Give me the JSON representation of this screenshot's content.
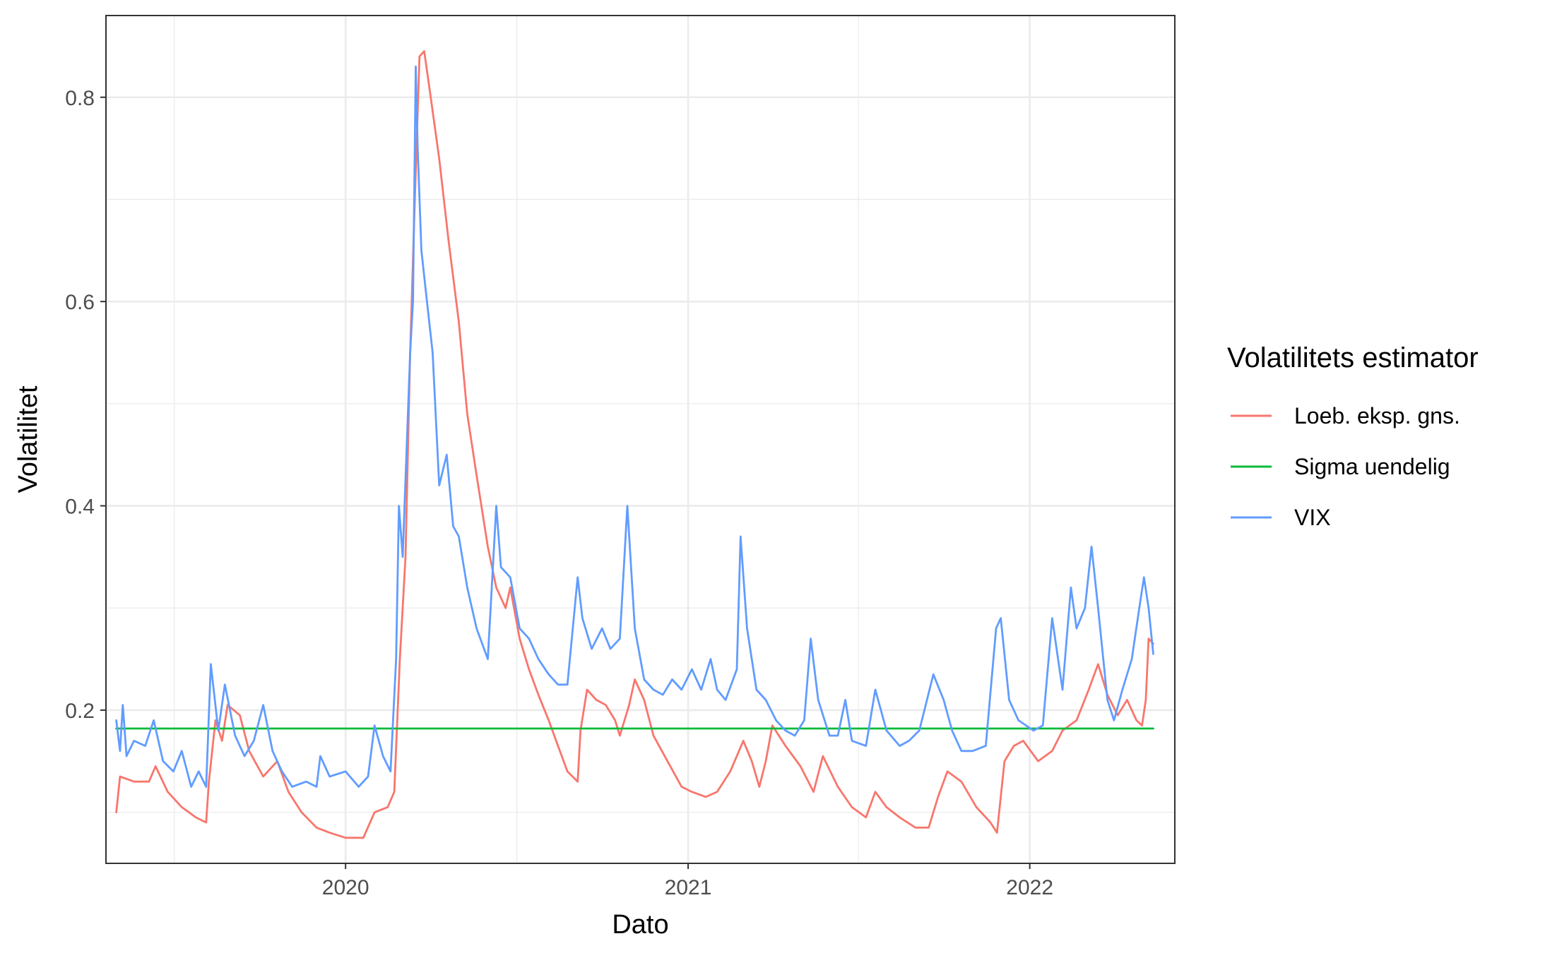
{
  "chart_data": {
    "type": "line",
    "xlabel": "Dato",
    "ylabel": "Volatilitet",
    "legend_title": "Volatilitets estimator",
    "legend_position": "right",
    "grid": true,
    "xlim": [
      "2019-04-20",
      "2022-06-05"
    ],
    "ylim": [
      0.05,
      0.88
    ],
    "x_ticks": [
      "2020",
      "2021",
      "2022"
    ],
    "y_ticks": [
      "0.2",
      "0.4",
      "0.6",
      "0.8"
    ],
    "series": [
      {
        "name": "Loeb. eksp. gns.",
        "color": "#F8766D",
        "points": [
          [
            "2019-05-01",
            0.1
          ],
          [
            "2019-05-05",
            0.135
          ],
          [
            "2019-05-20",
            0.13
          ],
          [
            "2019-06-05",
            0.13
          ],
          [
            "2019-06-12",
            0.145
          ],
          [
            "2019-06-25",
            0.12
          ],
          [
            "2019-07-10",
            0.105
          ],
          [
            "2019-07-25",
            0.095
          ],
          [
            "2019-08-05",
            0.09
          ],
          [
            "2019-08-08",
            0.13
          ],
          [
            "2019-08-15",
            0.19
          ],
          [
            "2019-08-22",
            0.17
          ],
          [
            "2019-08-28",
            0.205
          ],
          [
            "2019-09-10",
            0.195
          ],
          [
            "2019-09-20",
            0.16
          ],
          [
            "2019-10-05",
            0.135
          ],
          [
            "2019-10-20",
            0.15
          ],
          [
            "2019-11-01",
            0.12
          ],
          [
            "2019-11-15",
            0.1
          ],
          [
            "2019-12-01",
            0.085
          ],
          [
            "2019-12-15",
            0.08
          ],
          [
            "2020-01-01",
            0.075
          ],
          [
            "2020-01-20",
            0.075
          ],
          [
            "2020-02-01",
            0.1
          ],
          [
            "2020-02-15",
            0.105
          ],
          [
            "2020-02-22",
            0.12
          ],
          [
            "2020-02-28",
            0.25
          ],
          [
            "2020-03-05",
            0.35
          ],
          [
            "2020-03-10",
            0.55
          ],
          [
            "2020-03-15",
            0.7
          ],
          [
            "2020-03-20",
            0.84
          ],
          [
            "2020-03-25",
            0.845
          ],
          [
            "2020-04-01",
            0.8
          ],
          [
            "2020-04-10",
            0.74
          ],
          [
            "2020-04-20",
            0.66
          ],
          [
            "2020-05-01",
            0.58
          ],
          [
            "2020-05-10",
            0.49
          ],
          [
            "2020-05-20",
            0.43
          ],
          [
            "2020-06-01",
            0.36
          ],
          [
            "2020-06-10",
            0.32
          ],
          [
            "2020-06-20",
            0.3
          ],
          [
            "2020-06-25",
            0.32
          ],
          [
            "2020-07-05",
            0.27
          ],
          [
            "2020-07-15",
            0.24
          ],
          [
            "2020-07-25",
            0.215
          ],
          [
            "2020-08-05",
            0.19
          ],
          [
            "2020-08-15",
            0.165
          ],
          [
            "2020-08-25",
            0.14
          ],
          [
            "2020-09-05",
            0.13
          ],
          [
            "2020-09-08",
            0.18
          ],
          [
            "2020-09-15",
            0.22
          ],
          [
            "2020-09-25",
            0.21
          ],
          [
            "2020-10-05",
            0.205
          ],
          [
            "2020-10-15",
            0.19
          ],
          [
            "2020-10-20",
            0.175
          ],
          [
            "2020-10-30",
            0.205
          ],
          [
            "2020-11-05",
            0.23
          ],
          [
            "2020-11-15",
            0.21
          ],
          [
            "2020-11-25",
            0.175
          ],
          [
            "2020-12-10",
            0.15
          ],
          [
            "2020-12-25",
            0.125
          ],
          [
            "2021-01-05",
            0.12
          ],
          [
            "2021-01-20",
            0.115
          ],
          [
            "2021-02-01",
            0.12
          ],
          [
            "2021-02-15",
            0.14
          ],
          [
            "2021-03-01",
            0.17
          ],
          [
            "2021-03-10",
            0.15
          ],
          [
            "2021-03-18",
            0.125
          ],
          [
            "2021-03-25",
            0.15
          ],
          [
            "2021-04-01",
            0.185
          ],
          [
            "2021-04-15",
            0.165
          ],
          [
            "2021-05-01",
            0.145
          ],
          [
            "2021-05-15",
            0.12
          ],
          [
            "2021-05-25",
            0.155
          ],
          [
            "2021-06-10",
            0.125
          ],
          [
            "2021-06-25",
            0.105
          ],
          [
            "2021-07-10",
            0.095
          ],
          [
            "2021-07-20",
            0.12
          ],
          [
            "2021-08-01",
            0.105
          ],
          [
            "2021-08-15",
            0.095
          ],
          [
            "2021-09-01",
            0.085
          ],
          [
            "2021-09-15",
            0.085
          ],
          [
            "2021-09-25",
            0.115
          ],
          [
            "2021-10-05",
            0.14
          ],
          [
            "2021-10-20",
            0.13
          ],
          [
            "2021-11-05",
            0.105
          ],
          [
            "2021-11-20",
            0.09
          ],
          [
            "2021-11-27",
            0.08
          ],
          [
            "2021-12-05",
            0.15
          ],
          [
            "2021-12-15",
            0.165
          ],
          [
            "2021-12-25",
            0.17
          ],
          [
            "2022-01-10",
            0.15
          ],
          [
            "2022-01-25",
            0.16
          ],
          [
            "2022-02-05",
            0.18
          ],
          [
            "2022-02-20",
            0.19
          ],
          [
            "2022-03-05",
            0.22
          ],
          [
            "2022-03-15",
            0.245
          ],
          [
            "2022-03-25",
            0.215
          ],
          [
            "2022-04-05",
            0.195
          ],
          [
            "2022-04-15",
            0.21
          ],
          [
            "2022-04-25",
            0.19
          ],
          [
            "2022-05-01",
            0.185
          ],
          [
            "2022-05-05",
            0.21
          ],
          [
            "2022-05-08",
            0.27
          ],
          [
            "2022-05-13",
            0.265
          ]
        ]
      },
      {
        "name": "Sigma uendelig",
        "color": "#00BA38",
        "points": [
          [
            "2019-05-01",
            0.182
          ],
          [
            "2022-05-13",
            0.182
          ]
        ]
      },
      {
        "name": "VIX",
        "color": "#619CFF",
        "points": [
          [
            "2019-05-01",
            0.19
          ],
          [
            "2019-05-05",
            0.16
          ],
          [
            "2019-05-08",
            0.205
          ],
          [
            "2019-05-12",
            0.155
          ],
          [
            "2019-05-20",
            0.17
          ],
          [
            "2019-06-01",
            0.165
          ],
          [
            "2019-06-10",
            0.19
          ],
          [
            "2019-06-20",
            0.15
          ],
          [
            "2019-07-01",
            0.14
          ],
          [
            "2019-07-10",
            0.16
          ],
          [
            "2019-07-20",
            0.125
          ],
          [
            "2019-07-28",
            0.14
          ],
          [
            "2019-08-05",
            0.125
          ],
          [
            "2019-08-10",
            0.245
          ],
          [
            "2019-08-18",
            0.18
          ],
          [
            "2019-08-25",
            0.225
          ],
          [
            "2019-09-05",
            0.175
          ],
          [
            "2019-09-15",
            0.155
          ],
          [
            "2019-09-25",
            0.17
          ],
          [
            "2019-10-05",
            0.205
          ],
          [
            "2019-10-15",
            0.16
          ],
          [
            "2019-10-25",
            0.14
          ],
          [
            "2019-11-05",
            0.125
          ],
          [
            "2019-11-20",
            0.13
          ],
          [
            "2019-12-01",
            0.125
          ],
          [
            "2019-12-05",
            0.155
          ],
          [
            "2019-12-15",
            0.135
          ],
          [
            "2020-01-01",
            0.14
          ],
          [
            "2020-01-15",
            0.125
          ],
          [
            "2020-01-25",
            0.135
          ],
          [
            "2020-02-01",
            0.185
          ],
          [
            "2020-02-10",
            0.155
          ],
          [
            "2020-02-18",
            0.14
          ],
          [
            "2020-02-24",
            0.25
          ],
          [
            "2020-02-27",
            0.4
          ],
          [
            "2020-03-02",
            0.35
          ],
          [
            "2020-03-06",
            0.45
          ],
          [
            "2020-03-10",
            0.55
          ],
          [
            "2020-03-13",
            0.6
          ],
          [
            "2020-03-16",
            0.83
          ],
          [
            "2020-03-18",
            0.75
          ],
          [
            "2020-03-22",
            0.65
          ],
          [
            "2020-03-28",
            0.6
          ],
          [
            "2020-04-03",
            0.55
          ],
          [
            "2020-04-10",
            0.42
          ],
          [
            "2020-04-18",
            0.45
          ],
          [
            "2020-04-25",
            0.38
          ],
          [
            "2020-05-01",
            0.37
          ],
          [
            "2020-05-10",
            0.32
          ],
          [
            "2020-05-20",
            0.28
          ],
          [
            "2020-06-01",
            0.25
          ],
          [
            "2020-06-10",
            0.4
          ],
          [
            "2020-06-15",
            0.34
          ],
          [
            "2020-06-25",
            0.33
          ],
          [
            "2020-07-05",
            0.28
          ],
          [
            "2020-07-15",
            0.27
          ],
          [
            "2020-07-25",
            0.25
          ],
          [
            "2020-08-05",
            0.235
          ],
          [
            "2020-08-15",
            0.225
          ],
          [
            "2020-08-25",
            0.225
          ],
          [
            "2020-09-05",
            0.33
          ],
          [
            "2020-09-10",
            0.29
          ],
          [
            "2020-09-20",
            0.26
          ],
          [
            "2020-10-01",
            0.28
          ],
          [
            "2020-10-10",
            0.26
          ],
          [
            "2020-10-20",
            0.27
          ],
          [
            "2020-10-28",
            0.4
          ],
          [
            "2020-11-05",
            0.28
          ],
          [
            "2020-11-15",
            0.23
          ],
          [
            "2020-11-25",
            0.22
          ],
          [
            "2020-12-05",
            0.215
          ],
          [
            "2020-12-15",
            0.23
          ],
          [
            "2020-12-25",
            0.22
          ],
          [
            "2021-01-05",
            0.24
          ],
          [
            "2021-01-15",
            0.22
          ],
          [
            "2021-01-25",
            0.25
          ],
          [
            "2021-02-01",
            0.22
          ],
          [
            "2021-02-10",
            0.21
          ],
          [
            "2021-02-22",
            0.24
          ],
          [
            "2021-02-26",
            0.37
          ],
          [
            "2021-03-05",
            0.28
          ],
          [
            "2021-03-15",
            0.22
          ],
          [
            "2021-03-25",
            0.21
          ],
          [
            "2021-04-05",
            0.19
          ],
          [
            "2021-04-15",
            0.18
          ],
          [
            "2021-04-25",
            0.175
          ],
          [
            "2021-05-05",
            0.19
          ],
          [
            "2021-05-12",
            0.27
          ],
          [
            "2021-05-20",
            0.21
          ],
          [
            "2021-06-01",
            0.175
          ],
          [
            "2021-06-10",
            0.175
          ],
          [
            "2021-06-18",
            0.21
          ],
          [
            "2021-06-25",
            0.17
          ],
          [
            "2021-07-10",
            0.165
          ],
          [
            "2021-07-20",
            0.22
          ],
          [
            "2021-08-01",
            0.18
          ],
          [
            "2021-08-15",
            0.165
          ],
          [
            "2021-08-25",
            0.17
          ],
          [
            "2021-09-05",
            0.18
          ],
          [
            "2021-09-20",
            0.235
          ],
          [
            "2021-10-01",
            0.21
          ],
          [
            "2021-10-10",
            0.18
          ],
          [
            "2021-10-20",
            0.16
          ],
          [
            "2021-11-01",
            0.16
          ],
          [
            "2021-11-15",
            0.165
          ],
          [
            "2021-11-26",
            0.28
          ],
          [
            "2021-12-01",
            0.29
          ],
          [
            "2021-12-10",
            0.21
          ],
          [
            "2021-12-20",
            0.19
          ],
          [
            "2022-01-05",
            0.18
          ],
          [
            "2022-01-15",
            0.185
          ],
          [
            "2022-01-25",
            0.29
          ],
          [
            "2022-02-05",
            0.22
          ],
          [
            "2022-02-14",
            0.32
          ],
          [
            "2022-02-20",
            0.28
          ],
          [
            "2022-03-01",
            0.3
          ],
          [
            "2022-03-08",
            0.36
          ],
          [
            "2022-03-15",
            0.3
          ],
          [
            "2022-03-25",
            0.21
          ],
          [
            "2022-04-01",
            0.19
          ],
          [
            "2022-04-10",
            0.22
          ],
          [
            "2022-04-20",
            0.25
          ],
          [
            "2022-04-28",
            0.3
          ],
          [
            "2022-05-03",
            0.33
          ],
          [
            "2022-05-08",
            0.3
          ],
          [
            "2022-05-13",
            0.255
          ]
        ]
      }
    ]
  }
}
